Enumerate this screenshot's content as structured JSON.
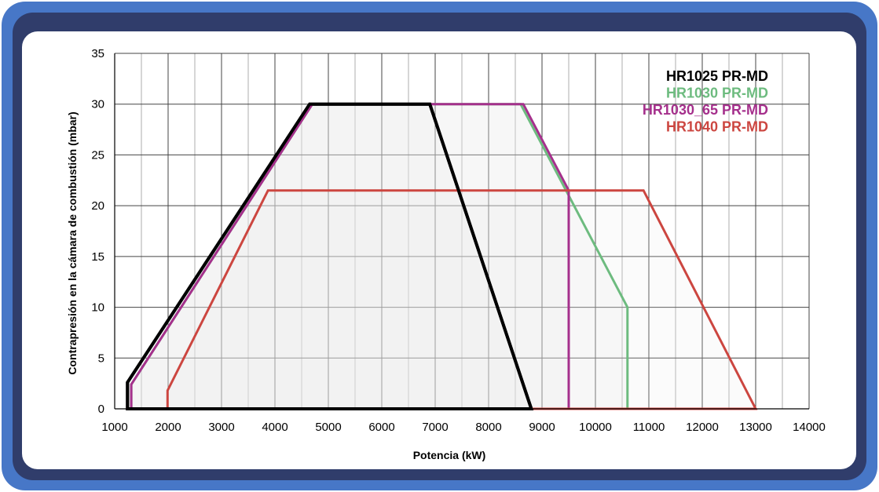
{
  "chart_data": {
    "type": "area",
    "title": "",
    "xlabel": "Potencia (kW)",
    "ylabel": "Contrapresión en la cámara de combustión (mbar)",
    "xlim": [
      1000,
      14000
    ],
    "ylim": [
      0,
      35
    ],
    "xticks": [
      "1000",
      "2000",
      "3000",
      "4000",
      "5000",
      "6000",
      "7000",
      "8000",
      "9000",
      "10000",
      "11000",
      "12000",
      "13000",
      "14000"
    ],
    "yticks": [
      "0",
      "5",
      "10",
      "15",
      "20",
      "25",
      "30",
      "35"
    ],
    "x_minor_step": 500,
    "y_minor_step": 5,
    "grid": true,
    "legend_position": "top-right",
    "series": [
      {
        "name": "HR1025 PR-MD",
        "color": "#000000",
        "points": [
          [
            1240,
            0
          ],
          [
            1240,
            2.6
          ],
          [
            4650,
            30
          ],
          [
            6900,
            30
          ],
          [
            8800,
            0
          ]
        ]
      },
      {
        "name": "HR1030 PR-MD",
        "color": "#6dbb7f",
        "points": [
          [
            1310,
            0
          ],
          [
            1310,
            2.4
          ],
          [
            4700,
            30
          ],
          [
            8600,
            30
          ],
          [
            10600,
            10
          ],
          [
            10600,
            0
          ]
        ]
      },
      {
        "name": "HR1030_65 PR-MD",
        "color": "#a5308c",
        "points": [
          [
            1310,
            0
          ],
          [
            1310,
            2.4
          ],
          [
            4700,
            30
          ],
          [
            8650,
            30
          ],
          [
            9500,
            21.5
          ],
          [
            9500,
            0
          ]
        ]
      },
      {
        "name": "HR1040 PR-MD",
        "color": "#cc4640",
        "points": [
          [
            1990,
            0
          ],
          [
            1990,
            1.8
          ],
          [
            3870,
            21.5
          ],
          [
            10900,
            21.5
          ],
          [
            13000,
            0
          ]
        ]
      }
    ]
  }
}
